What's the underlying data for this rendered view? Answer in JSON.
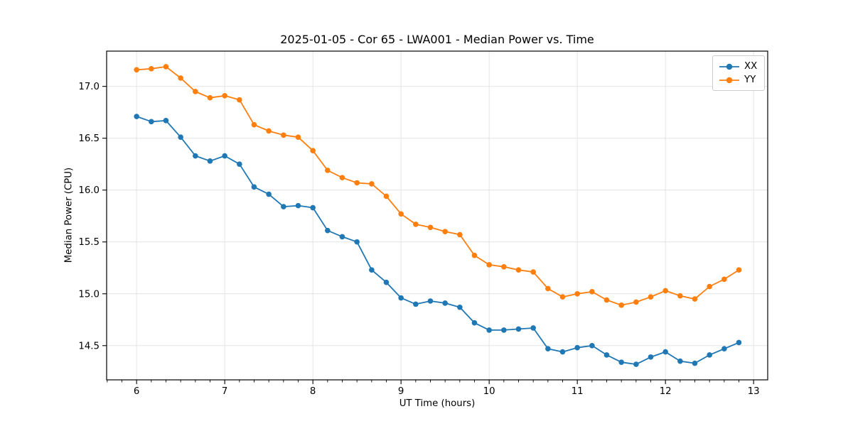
{
  "figure": {
    "title": "2025-01-05 - Cor 65 - LWA001 - Median Power vs. Time"
  },
  "chart_data": {
    "type": "line",
    "title": "2025-01-05 - Cor 65 - LWA001 - Median Power vs. Time",
    "xlabel": "UT Time (hours)",
    "ylabel": "Median Power (CPU)",
    "xlim": [
      5.66,
      13.16
    ],
    "ylim": [
      14.17,
      17.34
    ],
    "xticks": [
      6,
      7,
      8,
      9,
      10,
      11,
      12,
      13
    ],
    "yticks": [
      14.5,
      15.0,
      15.5,
      16.0,
      16.5,
      17.0
    ],
    "x_minor_step_hours": 0.1667,
    "grid": true,
    "legend_position": "upper right",
    "colors": {
      "grid": "#e4e4e4",
      "spine": "#000000",
      "text": "#000000"
    },
    "x": [
      6.0,
      6.167,
      6.333,
      6.5,
      6.667,
      6.833,
      7.0,
      7.167,
      7.333,
      7.5,
      7.667,
      7.833,
      8.0,
      8.167,
      8.333,
      8.5,
      8.667,
      8.833,
      9.0,
      9.167,
      9.333,
      9.5,
      9.667,
      9.833,
      10.0,
      10.167,
      10.333,
      10.5,
      10.667,
      10.833,
      11.0,
      11.167,
      11.333,
      11.5,
      11.667,
      11.833,
      12.0,
      12.167,
      12.333,
      12.5,
      12.667,
      12.833
    ],
    "series": [
      {
        "name": "XX",
        "color": "#1f77b4",
        "values": [
          16.71,
          16.66,
          16.67,
          16.51,
          16.33,
          16.28,
          16.33,
          16.25,
          16.03,
          15.96,
          15.84,
          15.85,
          15.83,
          15.61,
          15.55,
          15.5,
          15.23,
          15.11,
          14.96,
          14.9,
          14.93,
          14.91,
          14.87,
          14.72,
          14.65,
          14.65,
          14.66,
          14.67,
          14.47,
          14.44,
          14.48,
          14.5,
          14.41,
          14.34,
          14.32,
          14.39,
          14.44,
          14.35,
          14.33,
          14.41,
          14.47,
          14.53
        ]
      },
      {
        "name": "YY",
        "color": "#ff7f0e",
        "values": [
          17.16,
          17.17,
          17.19,
          17.08,
          16.95,
          16.89,
          16.91,
          16.87,
          16.63,
          16.57,
          16.53,
          16.51,
          16.38,
          16.19,
          16.12,
          16.07,
          16.06,
          15.94,
          15.77,
          15.67,
          15.64,
          15.6,
          15.57,
          15.37,
          15.28,
          15.26,
          15.23,
          15.21,
          15.05,
          14.97,
          15.0,
          15.02,
          14.94,
          14.89,
          14.92,
          14.97,
          15.03,
          14.98,
          14.95,
          15.07,
          15.14,
          15.23
        ]
      }
    ]
  }
}
